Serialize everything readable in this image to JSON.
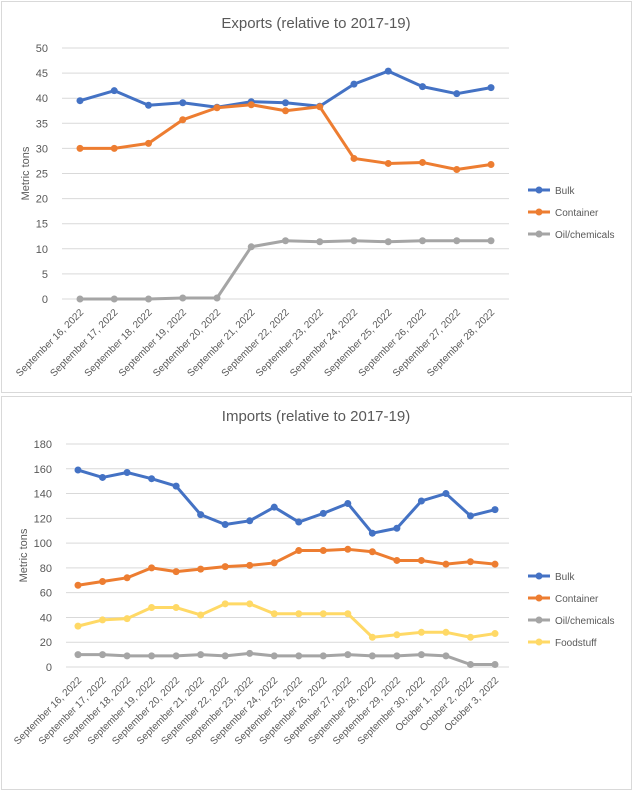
{
  "chart_data": [
    {
      "type": "line",
      "title": "Exports (relative to 2017-19)",
      "xlabel": "",
      "ylabel": "Metric tons",
      "ylim": [
        0,
        50
      ],
      "yticks": [
        0,
        5,
        10,
        15,
        20,
        25,
        30,
        35,
        40,
        45,
        50
      ],
      "grid": true,
      "legend": "right",
      "categories": [
        "September 16, 2022",
        "September 17, 2022",
        "September 18, 2022",
        "September 19, 2022",
        "September 20, 2022",
        "September 21, 2022",
        "September 22, 2022",
        "September 23, 2022",
        "September 24, 2022",
        "September 25, 2022",
        "September 26, 2022",
        "September 27, 2022",
        "September 28, 2022"
      ],
      "series": [
        {
          "name": "Bulk",
          "color": "#4472c4",
          "values": [
            39.5,
            41.5,
            38.6,
            39.1,
            38.2,
            39.3,
            39.1,
            38.4,
            42.8,
            45.4,
            42.3,
            40.9,
            42.1
          ]
        },
        {
          "name": "Container",
          "color": "#ed7d31",
          "values": [
            30,
            30,
            31,
            35.7,
            38.1,
            38.7,
            37.5,
            38.3,
            28,
            27,
            27.2,
            25.8,
            26.8
          ]
        },
        {
          "name": "Oil/chemicals",
          "color": "#a5a5a5",
          "values": [
            0,
            0,
            0,
            0.2,
            0.2,
            10.4,
            11.6,
            11.4,
            11.6,
            11.4,
            11.6,
            11.6,
            11.6
          ]
        }
      ]
    },
    {
      "type": "line",
      "title": "Imports (relative to 2017-19)",
      "xlabel": "",
      "ylabel": "Metric tons",
      "ylim": [
        0,
        180
      ],
      "yticks": [
        0,
        20,
        40,
        60,
        80,
        100,
        120,
        140,
        160,
        180
      ],
      "grid": true,
      "legend": "right",
      "categories": [
        "September 16, 2022",
        "September 17, 2022",
        "September 18, 2022",
        "September 19, 2022",
        "September 20, 2022",
        "September 21, 2022",
        "September 22, 2022",
        "September 23, 2022",
        "September 24, 2022",
        "September 25, 2022",
        "September 26, 2022",
        "September 27, 2022",
        "September 28, 2022",
        "September 29, 2022",
        "September 30, 2022",
        "October 1, 2022",
        "October 2, 2022",
        "October 3, 2022"
      ],
      "series": [
        {
          "name": "Bulk",
          "color": "#4472c4",
          "values": [
            159,
            153,
            157,
            152,
            146,
            123,
            115,
            118,
            129,
            117,
            124,
            132,
            108,
            112,
            134,
            140,
            122,
            127
          ]
        },
        {
          "name": "Container",
          "color": "#ed7d31",
          "values": [
            66,
            69,
            72,
            80,
            77,
            79,
            81,
            82,
            84,
            94,
            94,
            95,
            93,
            86,
            86,
            83,
            85,
            83
          ]
        },
        {
          "name": "Oil/chemicals",
          "color": "#a5a5a5",
          "values": [
            10,
            10,
            9,
            9,
            9,
            10,
            9,
            11,
            9,
            9,
            9,
            10,
            9,
            9,
            10,
            9,
            2,
            2
          ]
        },
        {
          "name": "Foodstuff",
          "color": "#ffd966",
          "values": [
            33,
            38,
            39,
            48,
            48,
            42,
            51,
            51,
            43,
            43,
            43,
            43,
            24,
            26,
            28,
            28,
            24,
            27
          ]
        }
      ]
    }
  ]
}
